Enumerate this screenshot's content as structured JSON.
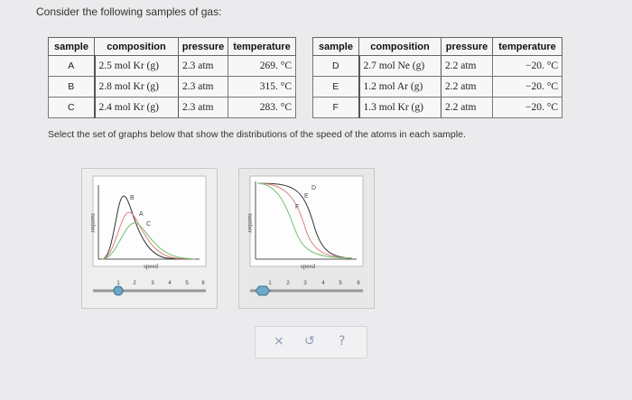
{
  "question": {
    "prompt": "Consider the following samples of gas:",
    "instruction": "Select the set of graphs below that show the distributions of the speed of the atoms in each sample."
  },
  "tables": {
    "headers": [
      "sample",
      "composition",
      "pressure",
      "temperature"
    ],
    "left": [
      {
        "sample": "A",
        "composition": "2.5 mol Kr (g)",
        "pressure": "2.3 atm",
        "temperature": "269. °C"
      },
      {
        "sample": "B",
        "composition": "2.8 mol Kr (g)",
        "pressure": "2.3 atm",
        "temperature": "315. °C"
      },
      {
        "sample": "C",
        "composition": "2.4 mol Kr (g)",
        "pressure": "2.3 atm",
        "temperature": "283. °C"
      }
    ],
    "right": [
      {
        "sample": "D",
        "composition": "2.7 mol Ne (g)",
        "pressure": "2.2 atm",
        "temperature": "−20. °C"
      },
      {
        "sample": "E",
        "composition": "1.2 mol Ar (g)",
        "pressure": "2.2 atm",
        "temperature": "−20. °C"
      },
      {
        "sample": "F",
        "composition": "1.3 mol Kr (g)",
        "pressure": "2.2 atm",
        "temperature": "−20. °C"
      }
    ]
  },
  "graphs": {
    "left": {
      "ylabel": "number",
      "xlabel": "speed",
      "curve_labels": [
        "B",
        "A",
        "C"
      ],
      "slider_ticks": [
        "1",
        "2",
        "3",
        "4",
        "5",
        "6"
      ],
      "slider_value": 1
    },
    "right": {
      "ylabel": "number",
      "xlabel": "speed",
      "curve_labels": [
        "D",
        "E",
        "F"
      ],
      "slider_ticks": [
        "1",
        "2",
        "3",
        "4",
        "5",
        "6"
      ],
      "slider_value": 0
    }
  },
  "actions": {
    "clear_icon": "×",
    "undo_icon": "↺",
    "help_icon": "?"
  },
  "colors": {
    "curve_black": "#333333",
    "curve_red": "#e08080",
    "curve_green": "#70c070",
    "curve_blue": "#8080e0",
    "slider_handle": "#6fa8c8",
    "icon": "#8a9bb0"
  }
}
